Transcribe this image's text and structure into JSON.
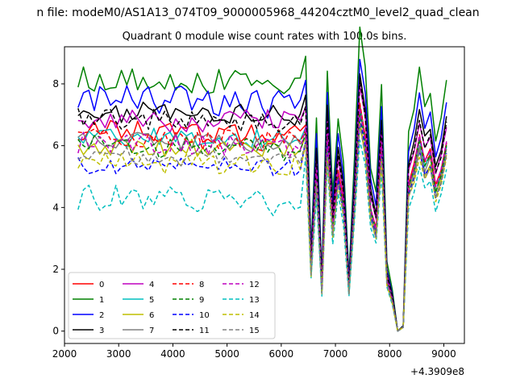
{
  "suptitle": "n file: modeM0/AS1A13_074T09_9000005968_44204cztM0_level2_quad_clean",
  "chart_data": {
    "type": "line",
    "title": "Quadrant 0 module wise count rates with 100.0s bins.",
    "xlabel": "",
    "ylabel": "",
    "x_offset_label": "+4.3909e8",
    "xlim": [
      2000,
      9380
    ],
    "ylim": [
      -0.4,
      9.2
    ],
    "xticks": [
      2000,
      3000,
      4000,
      5000,
      6000,
      7000,
      8000,
      9000
    ],
    "yticks": [
      0,
      2,
      4,
      6,
      8
    ],
    "legend_position": "lower-left",
    "x_start": 2250,
    "x_step": 100,
    "dense_length": 42,
    "dip_x": [
      6450,
      6550,
      6650,
      6750,
      6850,
      6950,
      7050,
      7150,
      7250,
      7350,
      7450,
      7550,
      7650,
      7750,
      7850,
      7950,
      8050,
      8150,
      8250,
      8350,
      8450,
      8550,
      8650,
      8750,
      8850,
      8950,
      9050
    ],
    "dip_profile": [
      1.0,
      0.3,
      0.78,
      0.2,
      0.95,
      0.5,
      0.78,
      0.62,
      0.2,
      0.62,
      1.1,
      0.95,
      0.6,
      0.5,
      0.9,
      0.25,
      0.15,
      0.0,
      0.02,
      0.72,
      0.8,
      0.95,
      0.82,
      0.87,
      0.7,
      0.78,
      0.92
    ],
    "series": [
      {
        "name": "0",
        "color": "#ff0000",
        "dash": false,
        "base": 6.5,
        "amp": 0.35,
        "peak": 6.7,
        "seed": 1
      },
      {
        "name": "1",
        "color": "#008000",
        "dash": false,
        "base": 8.2,
        "amp": 0.45,
        "peak": 8.9,
        "seed": 2
      },
      {
        "name": "2",
        "color": "#0000ff",
        "dash": false,
        "base": 7.5,
        "amp": 0.5,
        "peak": 8.1,
        "seed": 3
      },
      {
        "name": "3",
        "color": "#000000",
        "dash": false,
        "base": 7.1,
        "amp": 0.35,
        "peak": 7.6,
        "seed": 4
      },
      {
        "name": "4",
        "color": "#bf00bf",
        "dash": false,
        "base": 6.9,
        "amp": 0.4,
        "peak": 7.2,
        "seed": 5
      },
      {
        "name": "5",
        "color": "#00bfbf",
        "dash": false,
        "base": 6.3,
        "amp": 0.35,
        "peak": 6.5,
        "seed": 6
      },
      {
        "name": "6",
        "color": "#bfbf00",
        "dash": false,
        "base": 6.0,
        "amp": 0.3,
        "peak": 6.2,
        "seed": 7
      },
      {
        "name": "7",
        "color": "#808080",
        "dash": false,
        "base": 6.2,
        "amp": 0.3,
        "peak": 6.4,
        "seed": 8
      },
      {
        "name": "8",
        "color": "#ff0000",
        "dash": true,
        "base": 6.3,
        "amp": 0.35,
        "peak": 6.6,
        "seed": 9
      },
      {
        "name": "9",
        "color": "#008000",
        "dash": true,
        "base": 6.0,
        "amp": 0.35,
        "peak": 6.5,
        "seed": 10
      },
      {
        "name": "10",
        "color": "#0000ff",
        "dash": true,
        "base": 5.4,
        "amp": 0.3,
        "peak": 6.2,
        "seed": 11
      },
      {
        "name": "11",
        "color": "#000000",
        "dash": true,
        "base": 6.9,
        "amp": 0.35,
        "peak": 7.3,
        "seed": 12
      },
      {
        "name": "12",
        "color": "#bf00bf",
        "dash": true,
        "base": 6.1,
        "amp": 0.35,
        "peak": 6.6,
        "seed": 13
      },
      {
        "name": "13",
        "color": "#00bfbf",
        "dash": true,
        "base": 4.3,
        "amp": 0.45,
        "peak": 5.6,
        "seed": 14
      },
      {
        "name": "14",
        "color": "#bfbf00",
        "dash": true,
        "base": 5.5,
        "amp": 0.35,
        "peak": 6.0,
        "seed": 15
      },
      {
        "name": "15",
        "color": "#808080",
        "dash": true,
        "base": 5.7,
        "amp": 0.3,
        "peak": 6.1,
        "seed": 16
      }
    ]
  }
}
